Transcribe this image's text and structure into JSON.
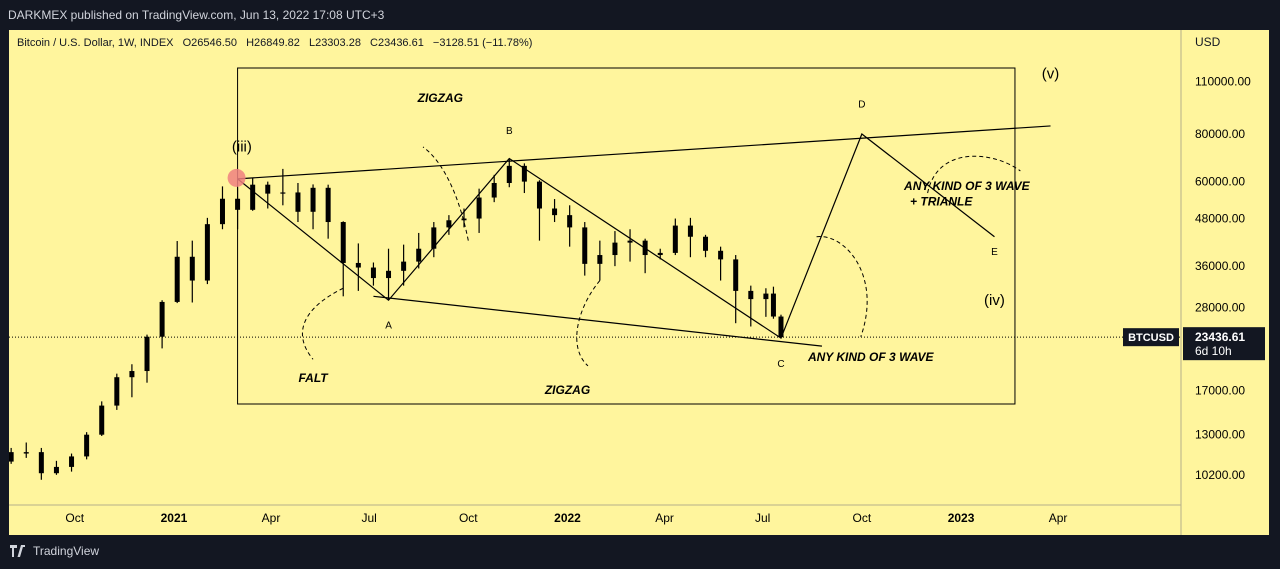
{
  "header": {
    "published": "DARKMEX published on TradingView.com, Jun 13, 2022 17:08 UTC+3"
  },
  "footer": {
    "brand": "TradingView"
  },
  "colors": {
    "background": "#fff59d",
    "candle": "#000000",
    "marker": "#f08080",
    "panel": "#131722"
  },
  "chart_data": {
    "type": "candlestick",
    "title": "Bitcoin / U.S. Dollar, 1W, INDEX",
    "ohlc": {
      "O": "O26546.50",
      "H": "H26849.82",
      "L": "L23303.28",
      "C": "C23436.61",
      "change": "−3128.51 (−11.78%)"
    },
    "currency_label": "USD",
    "scale": "log",
    "ylim": [
      8500,
      150000
    ],
    "y_ticks": [
      "110000.00",
      "80000.00",
      "60000.00",
      "48000.00",
      "36000.00",
      "28000.00",
      "17000.00",
      "13000.00",
      "10200.00"
    ],
    "x_ticks": [
      "Oct",
      "2021",
      "Apr",
      "Jul",
      "Oct",
      "2022",
      "Apr",
      "Jul",
      "Oct",
      "2023",
      "Apr"
    ],
    "x_tick_dates": [
      "2020-10-01",
      "2021-01-01",
      "2021-04-01",
      "2021-07-01",
      "2021-10-01",
      "2022-01-01",
      "2022-04-01",
      "2022-07-01",
      "2022-10-01",
      "2023-01-01",
      "2023-04-01"
    ],
    "x_range": [
      "2020-08-01",
      "2023-07-24"
    ],
    "symbol_tag": "BTCUSD",
    "last_price": "23436.61",
    "countdown": "6d 10h",
    "candles": [
      {
        "d": "2020-08-03",
        "o": 11050,
        "h": 12000,
        "l": 10900,
        "c": 11700
      },
      {
        "d": "2020-08-17",
        "o": 11700,
        "h": 12400,
        "l": 11300,
        "c": 11600
      },
      {
        "d": "2020-08-31",
        "o": 11700,
        "h": 12000,
        "l": 9900,
        "c": 10300
      },
      {
        "d": "2020-09-14",
        "o": 10300,
        "h": 11100,
        "l": 10200,
        "c": 10700
      },
      {
        "d": "2020-09-28",
        "o": 10700,
        "h": 11600,
        "l": 10400,
        "c": 11400
      },
      {
        "d": "2020-10-12",
        "o": 11400,
        "h": 13200,
        "l": 11200,
        "c": 13000
      },
      {
        "d": "2020-10-26",
        "o": 13000,
        "h": 15900,
        "l": 12900,
        "c": 15500
      },
      {
        "d": "2020-11-09",
        "o": 15500,
        "h": 18800,
        "l": 15100,
        "c": 18400
      },
      {
        "d": "2020-11-23",
        "o": 18400,
        "h": 19900,
        "l": 16300,
        "c": 19100
      },
      {
        "d": "2020-12-07",
        "o": 19100,
        "h": 23800,
        "l": 17800,
        "c": 23500
      },
      {
        "d": "2020-12-21",
        "o": 23500,
        "h": 29300,
        "l": 21900,
        "c": 29000
      },
      {
        "d": "2021-01-04",
        "o": 29000,
        "h": 41900,
        "l": 28800,
        "c": 38100
      },
      {
        "d": "2021-01-18",
        "o": 38100,
        "h": 42000,
        "l": 28900,
        "c": 33000
      },
      {
        "d": "2021-02-01",
        "o": 33000,
        "h": 48200,
        "l": 32300,
        "c": 46400
      },
      {
        "d": "2021-02-15",
        "o": 46400,
        "h": 58300,
        "l": 45000,
        "c": 54100
      },
      {
        "d": "2021-03-01",
        "o": 54100,
        "h": 58000,
        "l": 45000,
        "c": 50600
      },
      {
        "d": "2021-03-15",
        "o": 50600,
        "h": 61500,
        "l": 50300,
        "c": 58900
      },
      {
        "d": "2021-03-29",
        "o": 58900,
        "h": 60000,
        "l": 51000,
        "c": 55800
      },
      {
        "d": "2021-04-12",
        "o": 55800,
        "h": 64800,
        "l": 52000,
        "c": 56200
      },
      {
        "d": "2021-04-26",
        "o": 56200,
        "h": 59500,
        "l": 47000,
        "c": 50000
      },
      {
        "d": "2021-05-10",
        "o": 50000,
        "h": 59000,
        "l": 45000,
        "c": 57800
      },
      {
        "d": "2021-05-24",
        "o": 57800,
        "h": 58900,
        "l": 42500,
        "c": 47000
      },
      {
        "d": "2021-06-07",
        "o": 47000,
        "h": 47200,
        "l": 30000,
        "c": 36700
      },
      {
        "d": "2021-06-21",
        "o": 36700,
        "h": 41300,
        "l": 31000,
        "c": 35700
      },
      {
        "d": "2021-07-05",
        "o": 35700,
        "h": 36800,
        "l": 32000,
        "c": 33500
      },
      {
        "d": "2021-07-19",
        "o": 33500,
        "h": 40000,
        "l": 29300,
        "c": 35000
      },
      {
        "d": "2021-08-02",
        "o": 35000,
        "h": 41000,
        "l": 32000,
        "c": 37000
      },
      {
        "d": "2021-08-16",
        "o": 37000,
        "h": 44000,
        "l": 35500,
        "c": 40000
      },
      {
        "d": "2021-08-30",
        "o": 40000,
        "h": 47000,
        "l": 38000,
        "c": 45500
      },
      {
        "d": "2021-09-13",
        "o": 45500,
        "h": 49000,
        "l": 43500,
        "c": 47500
      },
      {
        "d": "2021-09-27",
        "o": 47500,
        "h": 51000,
        "l": 45500,
        "c": 48000
      },
      {
        "d": "2021-10-11",
        "o": 48000,
        "h": 57500,
        "l": 44000,
        "c": 54500
      },
      {
        "d": "2021-10-25",
        "o": 54500,
        "h": 62500,
        "l": 53000,
        "c": 59500
      },
      {
        "d": "2021-11-08",
        "o": 59500,
        "h": 69000,
        "l": 58000,
        "c": 66000
      },
      {
        "d": "2021-11-22",
        "o": 66000,
        "h": 67000,
        "l": 56000,
        "c": 60000
      },
      {
        "d": "2021-12-06",
        "o": 60000,
        "h": 60500,
        "l": 42000,
        "c": 51000
      },
      {
        "d": "2021-12-20",
        "o": 51000,
        "h": 54000,
        "l": 47000,
        "c": 49000
      },
      {
        "d": "2022-01-03",
        "o": 49000,
        "h": 52000,
        "l": 40500,
        "c": 45500
      },
      {
        "d": "2022-01-17",
        "o": 45500,
        "h": 47000,
        "l": 34000,
        "c": 36500
      },
      {
        "d": "2022-01-31",
        "o": 36500,
        "h": 42000,
        "l": 33000,
        "c": 38500
      },
      {
        "d": "2022-02-14",
        "o": 38500,
        "h": 44500,
        "l": 36000,
        "c": 41500
      },
      {
        "d": "2022-02-28",
        "o": 41500,
        "h": 45000,
        "l": 37000,
        "c": 42000
      },
      {
        "d": "2022-03-14",
        "o": 42000,
        "h": 42500,
        "l": 34500,
        "c": 38500
      },
      {
        "d": "2022-03-28",
        "o": 38500,
        "h": 40000,
        "l": 37500,
        "c": 39000
      },
      {
        "d": "2022-04-11",
        "o": 39000,
        "h": 48000,
        "l": 38500,
        "c": 46000
      },
      {
        "d": "2022-04-25",
        "o": 46000,
        "h": 48200,
        "l": 38000,
        "c": 43000
      },
      {
        "d": "2022-05-09",
        "o": 43000,
        "h": 43500,
        "l": 38000,
        "c": 39500
      },
      {
        "d": "2022-05-23",
        "o": 39500,
        "h": 40500,
        "l": 33000,
        "c": 37500
      },
      {
        "d": "2022-06-06",
        "o": 37500,
        "h": 38500,
        "l": 25500,
        "c": 31000
      },
      {
        "d": "2022-06-20",
        "o": 31000,
        "h": 32000,
        "l": 25000,
        "c": 29500
      },
      {
        "d": "2022-07-04",
        "o": 29500,
        "h": 31500,
        "l": 26500,
        "c": 30500
      },
      {
        "d": "2022-07-11",
        "o": 30500,
        "h": 31800,
        "l": 26200,
        "c": 26550
      },
      {
        "d": "2022-07-18",
        "o": 26550,
        "h": 26850,
        "l": 23300,
        "c": 23436.61
      }
    ],
    "annotations": [
      {
        "text": "(iii)",
        "style": "serif"
      },
      {
        "text": "ZIGZAG",
        "style": "bold-italic"
      },
      {
        "text": "B",
        "style": "small"
      },
      {
        "text": "D",
        "style": "small"
      },
      {
        "text": "(v)",
        "style": "serif"
      },
      {
        "text": "ANY KIND OF 3 WAVE",
        "style": "bold-italic"
      },
      {
        "text": "+ TRIANLE",
        "style": "bold-italic"
      },
      {
        "text": "E",
        "style": "small"
      },
      {
        "text": "(iv)",
        "style": "serif"
      },
      {
        "text": "A",
        "style": "small"
      },
      {
        "text": "FALT",
        "style": "bold-italic"
      },
      {
        "text": "ZIGZAG",
        "style": "bold-italic"
      },
      {
        "text": "C",
        "style": "small"
      },
      {
        "text": "ANY KIND OF 3 WAVE",
        "style": "bold-italic"
      }
    ],
    "wave_points": [
      {
        "label": "(iii)",
        "d": "2021-03-01",
        "v": 61000
      },
      {
        "label": "A",
        "d": "2021-07-19",
        "v": 29300
      },
      {
        "label": "B",
        "d": "2021-11-08",
        "v": 69000
      },
      {
        "label": "C",
        "d": "2022-07-18",
        "v": 23300
      },
      {
        "label": "D",
        "d": "2022-10-01",
        "v": 80000
      },
      {
        "label": "E",
        "d": "2023-02-01",
        "v": 43000
      }
    ]
  }
}
